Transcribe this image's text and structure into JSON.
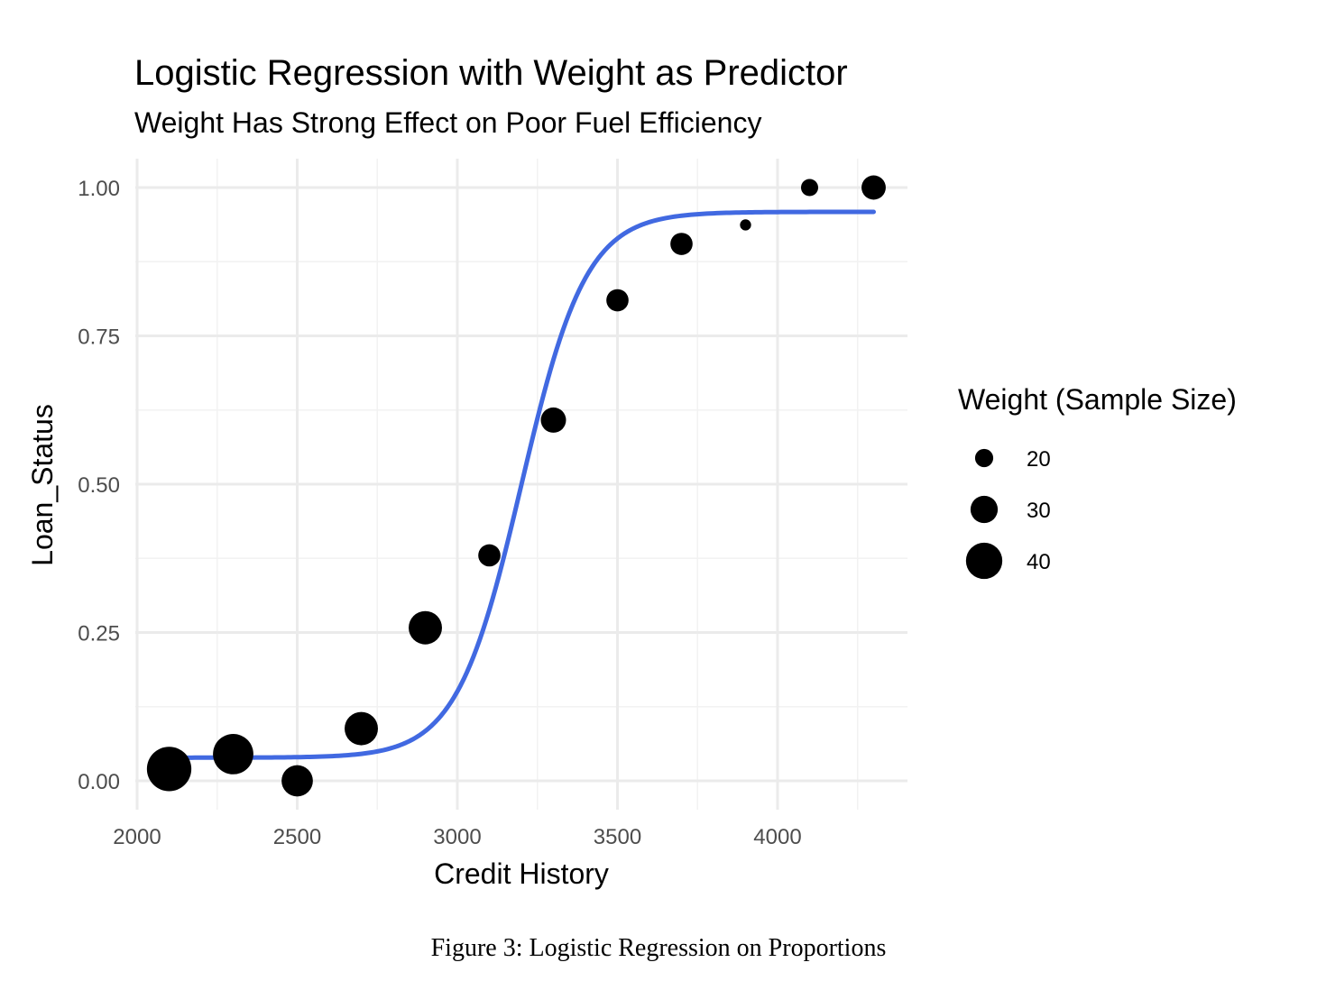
{
  "chart_data": {
    "type": "scatter",
    "title": "Logistic Regression with Weight as Predictor",
    "subtitle": "Weight Has Strong Effect on Poor Fuel Efficiency",
    "xlabel": "Credit History",
    "ylabel": "Loan_Status",
    "xlim": [
      2000,
      4400
    ],
    "ylim": [
      -0.05,
      1.05
    ],
    "x_ticks": [
      2000,
      2500,
      3000,
      3500,
      4000
    ],
    "x_tick_labels": [
      "2000",
      "2500",
      "3000",
      "3500",
      "4000"
    ],
    "y_ticks": [
      0,
      0.25,
      0.5,
      0.75,
      1.0
    ],
    "y_tick_labels": [
      "0.00",
      "0.25",
      "0.50",
      "0.75",
      "1.00"
    ],
    "grid": true,
    "points": [
      {
        "x": 2100,
        "y": 0.02,
        "size": 44
      },
      {
        "x": 2300,
        "y": 0.045,
        "size": 40
      },
      {
        "x": 2500,
        "y": 0.0,
        "size": 31
      },
      {
        "x": 2700,
        "y": 0.088,
        "size": 33
      },
      {
        "x": 2900,
        "y": 0.258,
        "size": 33
      },
      {
        "x": 3100,
        "y": 0.38,
        "size": 22
      },
      {
        "x": 3300,
        "y": 0.608,
        "size": 25
      },
      {
        "x": 3500,
        "y": 0.81,
        "size": 22
      },
      {
        "x": 3700,
        "y": 0.905,
        "size": 22
      },
      {
        "x": 3900,
        "y": 0.937,
        "size": 11
      },
      {
        "x": 4100,
        "y": 1.0,
        "size": 17
      },
      {
        "x": 4300,
        "y": 1.0,
        "size": 24
      }
    ],
    "fit_line": {
      "type": "logistic",
      "color": "#4169E1",
      "x_range": [
        2100,
        4300
      ],
      "lower": 0.039,
      "upper": 0.959,
      "midpoint": 3200,
      "scale": 101
    },
    "legend": {
      "title": "Weight (Sample Size)",
      "placement": "right",
      "entries": [
        {
          "label": "20",
          "size": 20
        },
        {
          "label": "30",
          "size": 30
        },
        {
          "label": "40",
          "size": 40
        }
      ]
    },
    "colors": {
      "points": "#000000",
      "line": "#4169E1",
      "grid": "#ebebeb"
    }
  },
  "caption": "Figure 3: Logistic Regression on Proportions"
}
